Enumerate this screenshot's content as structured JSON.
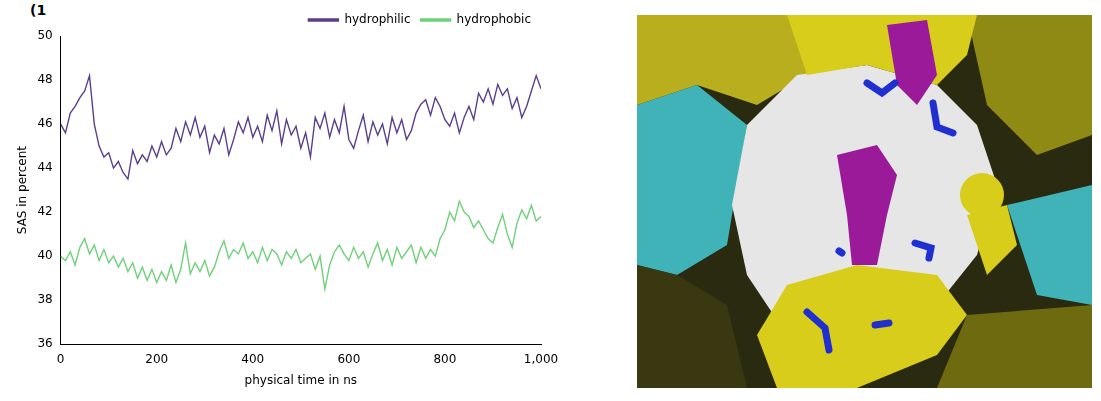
{
  "panel_label": "(1",
  "chart_data": {
    "type": "line",
    "x_label": "physical time in ns",
    "y_label": "SAS in percent",
    "x": [
      0,
      10,
      20,
      30,
      40,
      50,
      60,
      70,
      80,
      90,
      100,
      110,
      120,
      130,
      140,
      150,
      160,
      170,
      180,
      190,
      200,
      210,
      220,
      230,
      240,
      250,
      260,
      270,
      280,
      290,
      300,
      310,
      320,
      330,
      340,
      350,
      360,
      370,
      380,
      390,
      400,
      410,
      420,
      430,
      440,
      450,
      460,
      470,
      480,
      490,
      500,
      510,
      520,
      530,
      540,
      550,
      560,
      570,
      580,
      590,
      600,
      610,
      620,
      630,
      640,
      650,
      660,
      670,
      680,
      690,
      700,
      710,
      720,
      730,
      740,
      750,
      760,
      770,
      780,
      790,
      800,
      810,
      820,
      830,
      840,
      850,
      860,
      870,
      880,
      890,
      900,
      910,
      920,
      930,
      940,
      950,
      960,
      970,
      980,
      990,
      1000
    ],
    "series": [
      {
        "name": "hydrophilic",
        "color": "#5b3f8c",
        "values": [
          46,
          45.6,
          46.5,
          46.8,
          47.2,
          47.5,
          48.2,
          46,
          45,
          44.5,
          44.7,
          44,
          44.3,
          43.8,
          43.5,
          44.8,
          44.2,
          44.6,
          44.3,
          45,
          44.5,
          45.2,
          44.6,
          44.9,
          45.8,
          45.2,
          46.1,
          45.5,
          46.3,
          45.4,
          45.9,
          44.7,
          45.5,
          45.1,
          45.8,
          44.6,
          45.3,
          46.1,
          45.6,
          46.3,
          45.4,
          45.9,
          45.2,
          46.4,
          45.7,
          46.6,
          45.1,
          46.2,
          45.5,
          45.9,
          44.9,
          45.6,
          44.5,
          46.3,
          45.8,
          46.5,
          45.4,
          46.2,
          45.6,
          46.8,
          45.3,
          44.9,
          45.7,
          46.4,
          45.2,
          46.1,
          45.5,
          46,
          45.1,
          46.3,
          45.6,
          46.2,
          45.3,
          45.7,
          46.5,
          46.9,
          47.1,
          46.4,
          47.2,
          46.8,
          46.2,
          45.9,
          46.5,
          45.6,
          46.3,
          46.8,
          46.2,
          47.4,
          47,
          47.6,
          46.9,
          47.8,
          47.3,
          47.6,
          46.7,
          47.2,
          46.3,
          46.8,
          47.5,
          48.2,
          47.6
        ]
      },
      {
        "name": "hydrophobic",
        "color": "#6fd17a",
        "values": [
          40,
          39.8,
          40.2,
          39.6,
          40.4,
          40.8,
          40.1,
          40.5,
          39.8,
          40.3,
          39.7,
          40,
          39.5,
          39.9,
          39.3,
          39.7,
          39,
          39.5,
          38.9,
          39.4,
          38.8,
          39.3,
          38.9,
          39.6,
          38.8,
          39.4,
          40.6,
          39.2,
          39.7,
          39.3,
          39.8,
          39.1,
          39.5,
          40.2,
          40.7,
          39.9,
          40.3,
          40.1,
          40.6,
          39.9,
          40.2,
          39.7,
          40.4,
          39.8,
          40.3,
          40.1,
          39.6,
          40.2,
          39.9,
          40.3,
          39.7,
          39.9,
          40.1,
          39.4,
          40,
          38.5,
          39.6,
          40.2,
          40.5,
          40.1,
          39.8,
          40.4,
          39.9,
          40.2,
          39.5,
          40.1,
          40.6,
          39.8,
          40.3,
          39.6,
          40.4,
          39.9,
          40.2,
          40.5,
          39.7,
          40.4,
          39.9,
          40.3,
          40,
          40.8,
          41.2,
          42,
          41.6,
          42.5,
          42,
          41.8,
          41.3,
          41.6,
          41.2,
          40.8,
          40.6,
          41.3,
          41.9,
          41,
          40.4,
          41.5,
          42.1,
          41.7,
          42.3,
          41.6,
          41.8
        ]
      }
    ],
    "xlim": [
      0,
      1000
    ],
    "xticks": [
      0,
      200,
      400,
      600,
      800,
      1000
    ],
    "ylim": [
      36,
      50
    ],
    "yticks": [
      36,
      38,
      40,
      42,
      44,
      46,
      48,
      50
    ],
    "grid": false,
    "legend": "upper right"
  }
}
